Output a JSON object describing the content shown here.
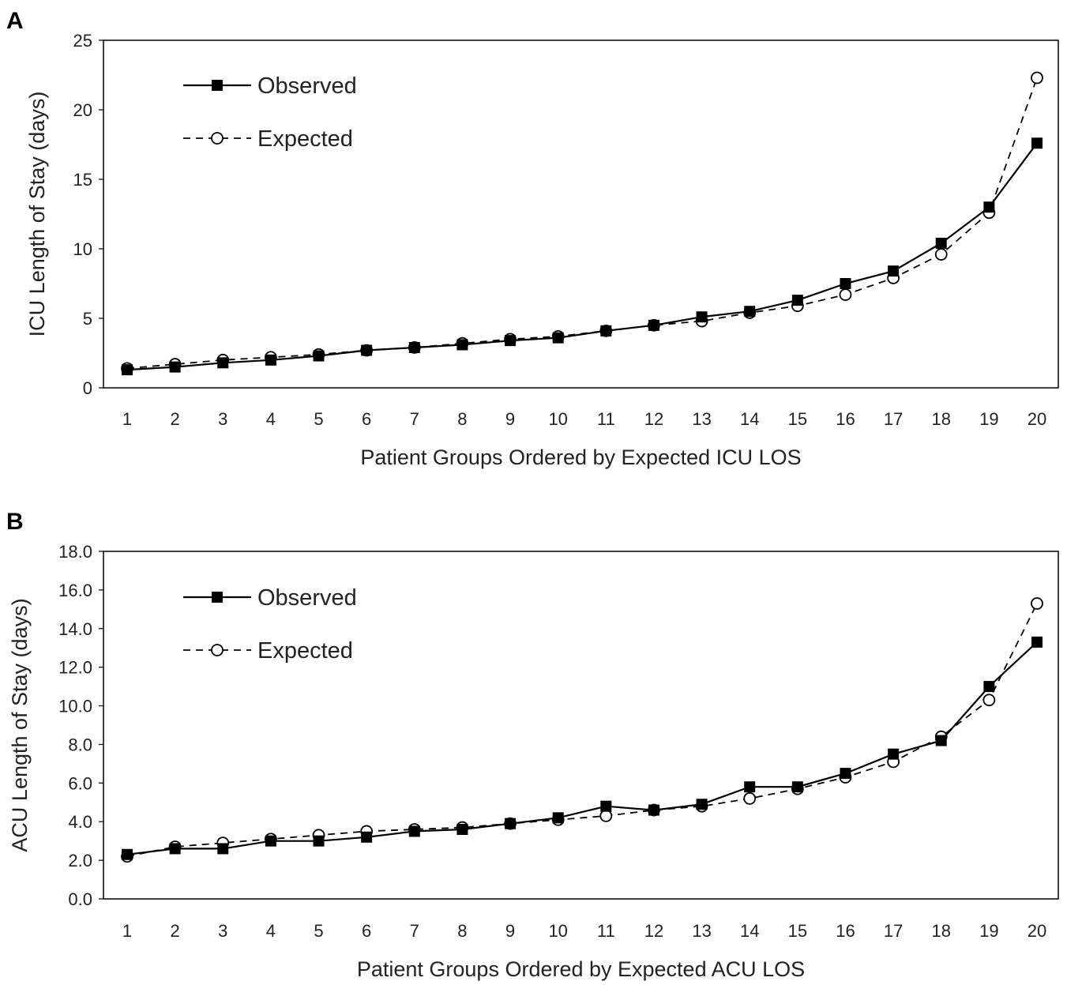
{
  "chart_data": [
    {
      "type": "line",
      "panel_label": "A",
      "ylabel": "ICU Length of Stay (days)",
      "xlabel": "Patient Groups Ordered by Expected ICU LOS",
      "ylim": [
        0,
        25
      ],
      "yticks": [
        0,
        5,
        10,
        15,
        20,
        25
      ],
      "ytick_labels": [
        "0",
        "5",
        "10",
        "15",
        "20",
        "25"
      ],
      "categories": [
        "1",
        "2",
        "3",
        "4",
        "5",
        "6",
        "7",
        "8",
        "9",
        "10",
        "11",
        "12",
        "13",
        "14",
        "15",
        "16",
        "17",
        "18",
        "19",
        "20"
      ],
      "legend_position": "top-left",
      "grid": false,
      "series": [
        {
          "name": "Observed",
          "marker": "filled-square",
          "line": "solid",
          "values": [
            1.3,
            1.5,
            1.8,
            2.0,
            2.3,
            2.7,
            2.9,
            3.1,
            3.4,
            3.6,
            4.1,
            4.5,
            5.1,
            5.5,
            6.3,
            7.5,
            8.4,
            10.4,
            13.0,
            17.6
          ]
        },
        {
          "name": "Expected",
          "marker": "open-circle",
          "line": "dashed",
          "values": [
            1.4,
            1.7,
            2.0,
            2.2,
            2.4,
            2.7,
            2.9,
            3.2,
            3.5,
            3.7,
            4.1,
            4.5,
            4.8,
            5.4,
            5.9,
            6.7,
            7.9,
            9.6,
            12.6,
            22.3
          ]
        }
      ]
    },
    {
      "type": "line",
      "panel_label": "B",
      "ylabel": "ACU Length of Stay (days)",
      "xlabel": "Patient Groups Ordered by Expected ACU LOS",
      "ylim": [
        0,
        18
      ],
      "yticks": [
        0,
        2,
        4,
        6,
        8,
        10,
        12,
        14,
        16,
        18
      ],
      "ytick_labels": [
        "0.0",
        "2.0",
        "4.0",
        "6.0",
        "8.0",
        "10.0",
        "12.0",
        "14.0",
        "16.0",
        "18.0"
      ],
      "categories": [
        "1",
        "2",
        "3",
        "4",
        "5",
        "6",
        "7",
        "8",
        "9",
        "10",
        "11",
        "12",
        "13",
        "14",
        "15",
        "16",
        "17",
        "18",
        "19",
        "20"
      ],
      "legend_position": "top-left",
      "grid": false,
      "series": [
        {
          "name": "Observed",
          "marker": "filled-square",
          "line": "solid",
          "values": [
            2.3,
            2.6,
            2.6,
            3.0,
            3.0,
            3.2,
            3.5,
            3.6,
            3.9,
            4.2,
            4.8,
            4.6,
            4.9,
            5.8,
            5.8,
            6.5,
            7.5,
            8.2,
            11.0,
            13.3
          ]
        },
        {
          "name": "Expected",
          "marker": "open-circle",
          "line": "dashed",
          "values": [
            2.2,
            2.7,
            2.9,
            3.1,
            3.3,
            3.5,
            3.6,
            3.7,
            3.9,
            4.1,
            4.3,
            4.6,
            4.8,
            5.2,
            5.7,
            6.3,
            7.1,
            8.4,
            10.3,
            15.3
          ]
        }
      ]
    }
  ]
}
